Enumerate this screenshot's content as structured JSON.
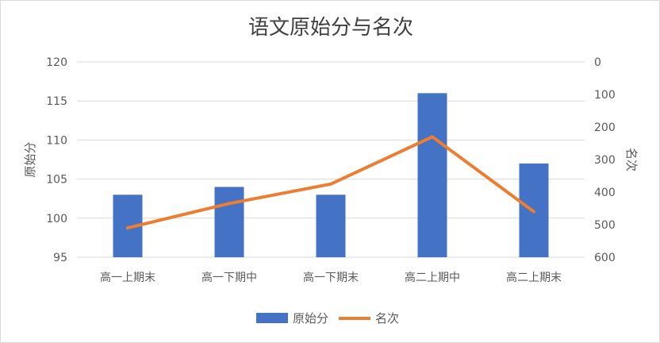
{
  "chart_data": {
    "type": "bar",
    "title": "语文原始分与名次",
    "categories": [
      "高一上期末",
      "高一下期中",
      "高一下期末",
      "高二上期中",
      "高二上期末"
    ],
    "series": [
      {
        "name": "原始分",
        "type": "bar",
        "axis": "left",
        "color": "#4472C4",
        "values": [
          103,
          104,
          103,
          116,
          107
        ]
      },
      {
        "name": "名次",
        "type": "line",
        "axis": "right",
        "color": "#ED7D31",
        "values": [
          510,
          435,
          375,
          230,
          460
        ]
      }
    ],
    "y_left": {
      "label": "原始分",
      "min": 95,
      "max": 120,
      "step": 5,
      "ticks": [
        "95",
        "100",
        "105",
        "110",
        "115",
        "120"
      ]
    },
    "y_right": {
      "label": "名次",
      "min": 0,
      "max": 600,
      "step": 100,
      "reversed": true,
      "ticks": [
        "0",
        "100",
        "200",
        "300",
        "400",
        "500",
        "600"
      ]
    },
    "grid": true,
    "legend": "bottom"
  }
}
